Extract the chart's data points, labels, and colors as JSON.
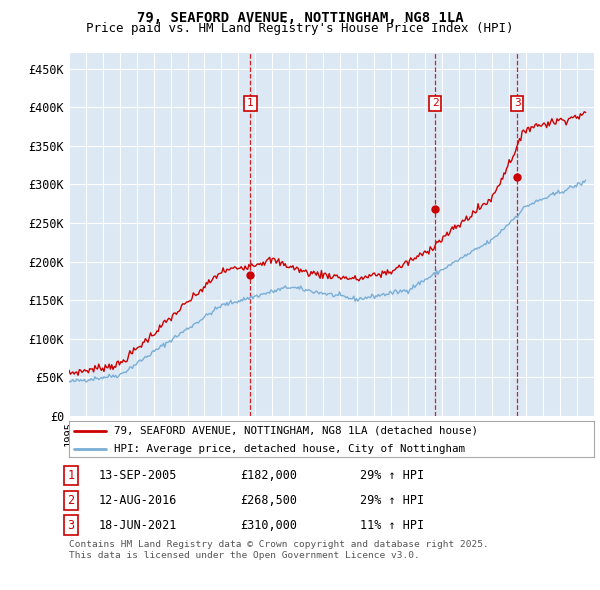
{
  "title": "79, SEAFORD AVENUE, NOTTINGHAM, NG8 1LA",
  "subtitle": "Price paid vs. HM Land Registry's House Price Index (HPI)",
  "ylim": [
    0,
    470000
  ],
  "yticks": [
    0,
    50000,
    100000,
    150000,
    200000,
    250000,
    300000,
    350000,
    400000,
    450000
  ],
  "ytick_labels": [
    "£0",
    "£50K",
    "£100K",
    "£150K",
    "£200K",
    "£250K",
    "£300K",
    "£350K",
    "£400K",
    "£450K"
  ],
  "plot_bg_color": "#dce9f5",
  "line1_color": "#cc0000",
  "line2_color": "#7aaed6",
  "transaction_year_floats": [
    2005.71,
    2016.62,
    2021.46
  ],
  "transaction_prices": [
    182000,
    268500,
    310000
  ],
  "transaction_labels": [
    "1",
    "2",
    "3"
  ],
  "transaction_pct": [
    "29% ↑ HPI",
    "29% ↑ HPI",
    "11% ↑ HPI"
  ],
  "transaction_date_strs": [
    "13-SEP-2005",
    "12-AUG-2016",
    "18-JUN-2021"
  ],
  "legend_line1": "79, SEAFORD AVENUE, NOTTINGHAM, NG8 1LA (detached house)",
  "legend_line2": "HPI: Average price, detached house, City of Nottingham",
  "footer": "Contains HM Land Registry data © Crown copyright and database right 2025.\nThis data is licensed under the Open Government Licence v3.0.",
  "title_fontsize": 10,
  "subtitle_fontsize": 9,
  "tick_fontsize": 8.5,
  "xstart": 1995,
  "xend": 2026
}
